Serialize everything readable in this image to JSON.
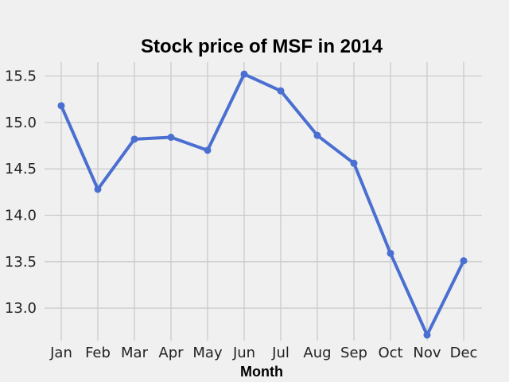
{
  "chart_data": {
    "type": "line",
    "title": "Stock price of MSF in 2014",
    "xlabel": "Month",
    "ylabel": "",
    "categories": [
      "Jan",
      "Feb",
      "Mar",
      "Apr",
      "May",
      "Jun",
      "Jul",
      "Aug",
      "Sep",
      "Oct",
      "Nov",
      "Dec"
    ],
    "series": [
      {
        "name": "",
        "color": "#4a6fd1",
        "values": [
          15.18,
          14.28,
          14.82,
          14.84,
          14.7,
          15.52,
          15.34,
          14.86,
          14.56,
          13.59,
          12.71,
          13.51
        ]
      }
    ],
    "ylim": [
      12.65,
      15.65
    ],
    "yticks": [
      13.0,
      13.5,
      14.0,
      14.5,
      15.0,
      15.5
    ],
    "ytick_labels": [
      "13.0",
      "13.5",
      "14.0",
      "14.5",
      "15.0",
      "15.5"
    ],
    "grid": true,
    "background": "#f0f0f0",
    "grid_color": "#cbcbcb"
  }
}
